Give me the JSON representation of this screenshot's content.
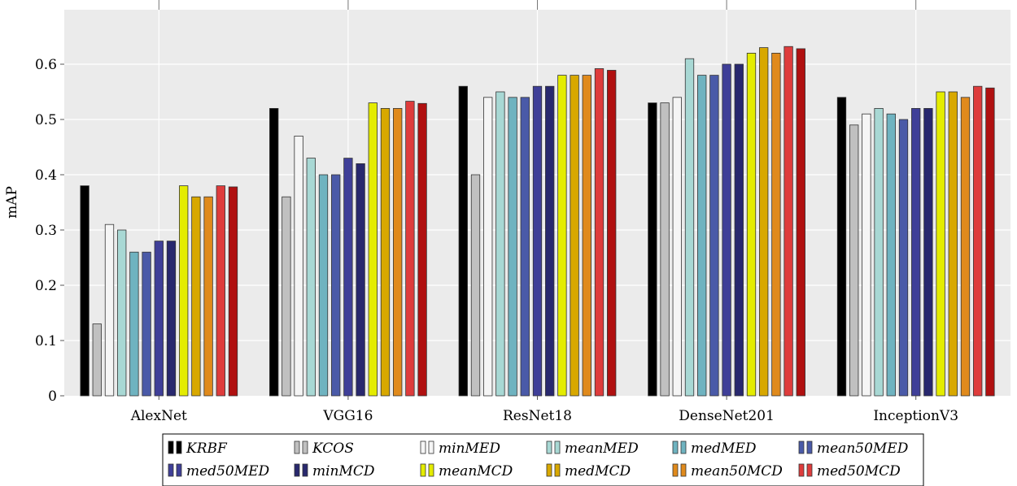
{
  "chart_data": {
    "type": "bar",
    "ylabel": "mAP",
    "ylim": [
      0,
      0.7
    ],
    "yticks": [
      0,
      0.1,
      0.2,
      0.3,
      0.4,
      0.5,
      0.6
    ],
    "ytick_labels": [
      "0",
      "0.1",
      "0.2",
      "0.3",
      "0.4",
      "0.5",
      "0.6"
    ],
    "grid": true,
    "legend_position": "bottom",
    "categories": [
      "AlexNet",
      "VGG16",
      "ResNet18",
      "DenseNet201",
      "InceptionV3"
    ],
    "series": [
      {
        "name": "KRBF",
        "color": "#000000",
        "values": [
          0.38,
          0.52,
          0.56,
          0.53,
          0.54
        ]
      },
      {
        "name": "KCOS",
        "color": "#c0c0c0",
        "values": [
          0.13,
          0.36,
          0.4,
          0.53,
          0.49
        ]
      },
      {
        "name": "minMED",
        "color": "#f5f5f5",
        "values": [
          0.31,
          0.47,
          0.54,
          0.54,
          0.51
        ]
      },
      {
        "name": "meanMED",
        "color": "#a8d8d4",
        "values": [
          0.3,
          0.43,
          0.55,
          0.61,
          0.52
        ]
      },
      {
        "name": "medMED",
        "color": "#6fb3c0",
        "values": [
          0.26,
          0.4,
          0.54,
          0.58,
          0.51
        ]
      },
      {
        "name": "mean50MED",
        "color": "#4a5aa8",
        "values": [
          0.26,
          0.4,
          0.54,
          0.58,
          0.5
        ]
      },
      {
        "name": "med50MED",
        "color": "#3f3f98",
        "values": [
          0.28,
          0.43,
          0.56,
          0.6,
          0.52
        ]
      },
      {
        "name": "minMCD",
        "color": "#28286e",
        "values": [
          0.28,
          0.42,
          0.56,
          0.6,
          0.52
        ]
      },
      {
        "name": "meanMCD",
        "color": "#e4ec00",
        "values": [
          0.38,
          0.53,
          0.58,
          0.62,
          0.55
        ]
      },
      {
        "name": "medMCD",
        "color": "#d8a800",
        "values": [
          0.36,
          0.52,
          0.58,
          0.63,
          0.55
        ]
      },
      {
        "name": "mean50MCD",
        "color": "#e08a1c",
        "values": [
          0.36,
          0.52,
          0.58,
          0.62,
          0.54
        ]
      },
      {
        "name": "med50MCD",
        "color": "#de3c3c",
        "values": [
          0.38,
          0.533,
          0.592,
          0.632,
          0.56
        ]
      },
      {
        "name": "",
        "color": "#b01010",
        "values": [
          0.378,
          0.529,
          0.589,
          0.628,
          0.557
        ]
      }
    ]
  }
}
